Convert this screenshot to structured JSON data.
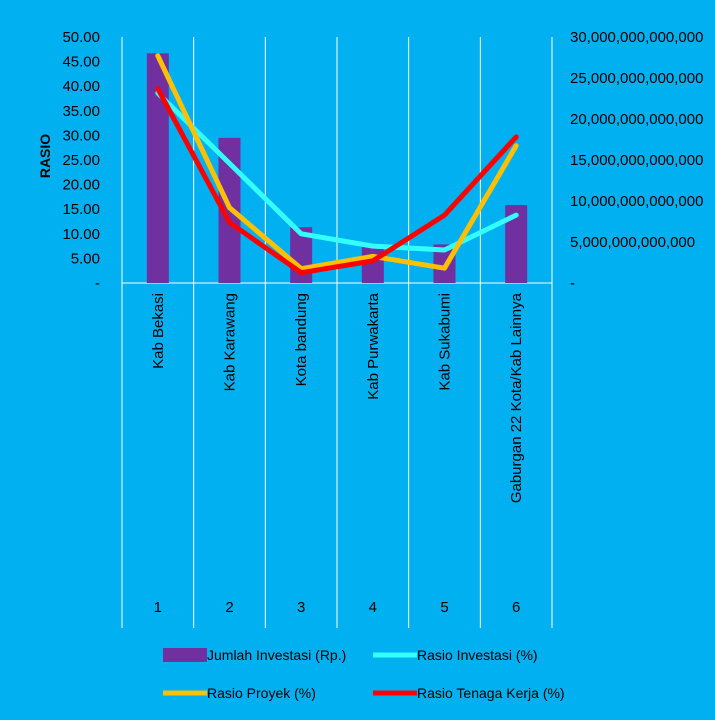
{
  "chart_data": {
    "type": "bar",
    "ylabel": "RASIO",
    "left_axis": {
      "ylim": [
        0,
        50
      ],
      "ticks": [
        "-",
        "5.00",
        "10.00",
        "15.00",
        "20.00",
        "25.00",
        "30.00",
        "35.00",
        "40.00",
        "45.00",
        "50.00"
      ]
    },
    "right_axis": {
      "ylim": [
        0,
        30000000000000
      ],
      "ticks": [
        "-",
        "5,000,000,000,000",
        "10,000,000,000,000",
        "15,000,000,000,000",
        "20,000,000,000,000",
        "25,000,000,000,000",
        "30,000,000,000,000"
      ]
    },
    "categories": [
      "Kab Bekasi",
      "Kab Karawang",
      "Kota bandung",
      "Kab Purwakarta",
      "Kab Sukabumi",
      "Gaburgan 22 Kota/Kab Lainnya"
    ],
    "category_numbers": [
      "1",
      "2",
      "3",
      "4",
      "5",
      "6"
    ],
    "grid": true,
    "legend_position": "bottom",
    "series": [
      {
        "name": "Jumlah Investasi   (Rp.)",
        "type": "bar",
        "axis": "right",
        "color": "#7030A0",
        "values": [
          28000000000000,
          17700000000000,
          6800000000000,
          4700000000000,
          4700000000000,
          9500000000000
        ]
      },
      {
        "name": "Rasio Investasi (%)",
        "type": "line",
        "axis": "left",
        "color": "#33FFFF",
        "values": [
          38.6,
          24.3,
          10.0,
          7.5,
          6.7,
          13.8
        ]
      },
      {
        "name": "Rasio Proyek (%)",
        "type": "line",
        "axis": "left",
        "color": "#FFC000",
        "values": [
          46.2,
          15.3,
          2.9,
          5.4,
          3.0,
          27.9
        ]
      },
      {
        "name": "Rasio Tenaga Kerja (%)",
        "type": "line",
        "axis": "left",
        "color": "#FF0000",
        "values": [
          39.5,
          12.3,
          2.1,
          4.5,
          13.8,
          29.7
        ]
      }
    ]
  }
}
